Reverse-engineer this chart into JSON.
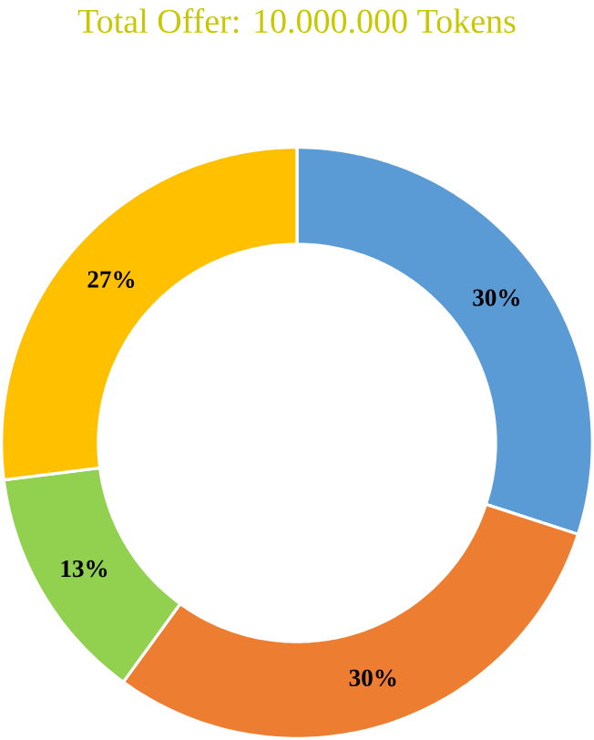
{
  "chart_data": {
    "type": "donut",
    "title": "Total Offer: 10.000.000 Tokens",
    "categories": [
      null,
      null,
      null,
      null
    ],
    "values": [
      30,
      30,
      13,
      27
    ],
    "colors": [
      "#5b9bd5",
      "#ed7d31",
      "#92d050",
      "#ffc000"
    ],
    "value_labels": [
      "30%",
      "30%",
      "13%",
      "27%"
    ]
  }
}
